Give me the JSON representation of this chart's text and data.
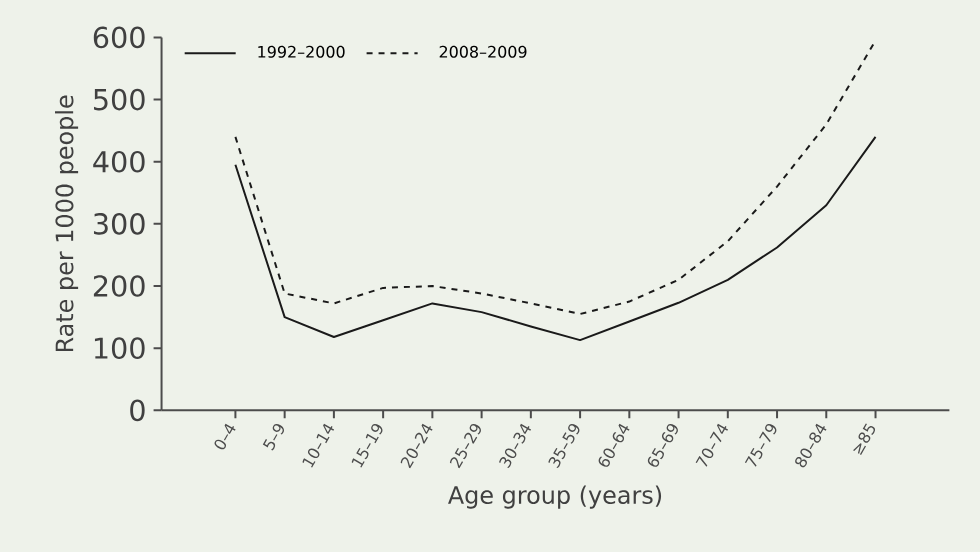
{
  "chart_data": {
    "type": "line",
    "xlabel": "Age group (years)",
    "ylabel": "Rate per 1000 people",
    "categories": [
      "0–4",
      "5–9",
      "10–14",
      "15–19",
      "20–24",
      "25–29",
      "30–34",
      "35–59",
      "60–64",
      "65–69",
      "70–74",
      "75–79",
      "80–84",
      "≥85"
    ],
    "series": [
      {
        "name": "1992–2000",
        "color": "#1a1a1a",
        "line_style": "solid",
        "values": [
          395,
          150,
          118,
          145,
          172,
          158,
          135,
          113,
          143,
          173,
          210,
          262,
          330,
          440
        ]
      },
      {
        "name": "2008–2009",
        "color": "#1a1a1a",
        "line_style": "dashed",
        "values": [
          440,
          188,
          172,
          197,
          200,
          188,
          172,
          155,
          175,
          210,
          272,
          360,
          460,
          595
        ]
      }
    ],
    "ylim": [
      0,
      600
    ],
    "yticks": [
      0,
      100,
      200,
      300,
      400,
      500,
      600
    ],
    "legend": "top left",
    "marker": "none",
    "grid": false
  }
}
